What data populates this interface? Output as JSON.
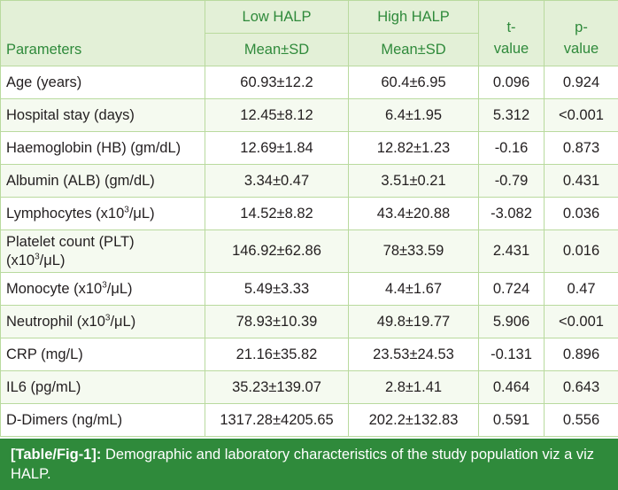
{
  "table": {
    "header": {
      "parameters": "Parameters",
      "low_halp": "Low HALP",
      "high_halp": "High HALP",
      "low_sub": "Mean±SD",
      "high_sub": "Mean±SD",
      "t_value_1": "t-",
      "t_value_2": "value",
      "p_value_1": "p-",
      "p_value_2": "value"
    },
    "rows": [
      {
        "param": "Age (years)",
        "low": "60.93±12.2",
        "high": "60.4±6.95",
        "t": "0.096",
        "p": "0.924"
      },
      {
        "param": "Hospital stay (days)",
        "low": "12.45±8.12",
        "high": "6.4±1.95",
        "t": "5.312",
        "p": "<0.001"
      },
      {
        "param": "Haemoglobin (HB) (gm/dL)",
        "low": "12.69±1.84",
        "high": "12.82±1.23",
        "t": "-0.16",
        "p": "0.873"
      },
      {
        "param": "Albumin (ALB) (gm/dL)",
        "low": "3.34±0.47",
        "high": "3.51±0.21",
        "t": "-0.79",
        "p": "0.431"
      },
      {
        "param_pre": "Lymphocytes (x10",
        "param_sup": "3",
        "param_post": "/μL)",
        "low": "14.52±8.82",
        "high": "43.4±20.88",
        "t": "-3.082",
        "p": "0.036"
      },
      {
        "param_l1": "Platelet count (PLT)",
        "param_pre": "(x10",
        "param_sup": "3",
        "param_post": "/μL)",
        "low": "146.92±62.86",
        "high": "78±33.59",
        "t": "2.431",
        "p": "0.016"
      },
      {
        "param_pre": "Monocyte (x10",
        "param_sup": "3",
        "param_post": "/μL)",
        "low": "5.49±3.33",
        "high": "4.4±1.67",
        "t": "0.724",
        "p": "0.47"
      },
      {
        "param_pre": "Neutrophil (x10",
        "param_sup": "3",
        "param_post": "/μL)",
        "low": "78.93±10.39",
        "high": "49.8±19.77",
        "t": "5.906",
        "p": "<0.001"
      },
      {
        "param": "CRP (mg/L)",
        "low": "21.16±35.82",
        "high": "23.53±24.53",
        "t": "-0.131",
        "p": "0.896"
      },
      {
        "param": "IL6 (pg/mL)",
        "low": "35.23±139.07",
        "high": "2.8±1.41",
        "t": "0.464",
        "p": "0.643"
      },
      {
        "param": "D-Dimers (ng/mL)",
        "low": "1317.28±4205.65",
        "high": "202.2±132.83",
        "t": "0.591",
        "p": "0.556"
      }
    ]
  },
  "caption": {
    "label": "[Table/Fig-1]:",
    "text": " Demographic and laboratory characteristics of the study population viz a viz HALP."
  },
  "colors": {
    "header_bg": "#e3f0d7",
    "header_text": "#2f8a3b",
    "border": "#b9da9e",
    "caption_bg": "#2f8a3b"
  }
}
